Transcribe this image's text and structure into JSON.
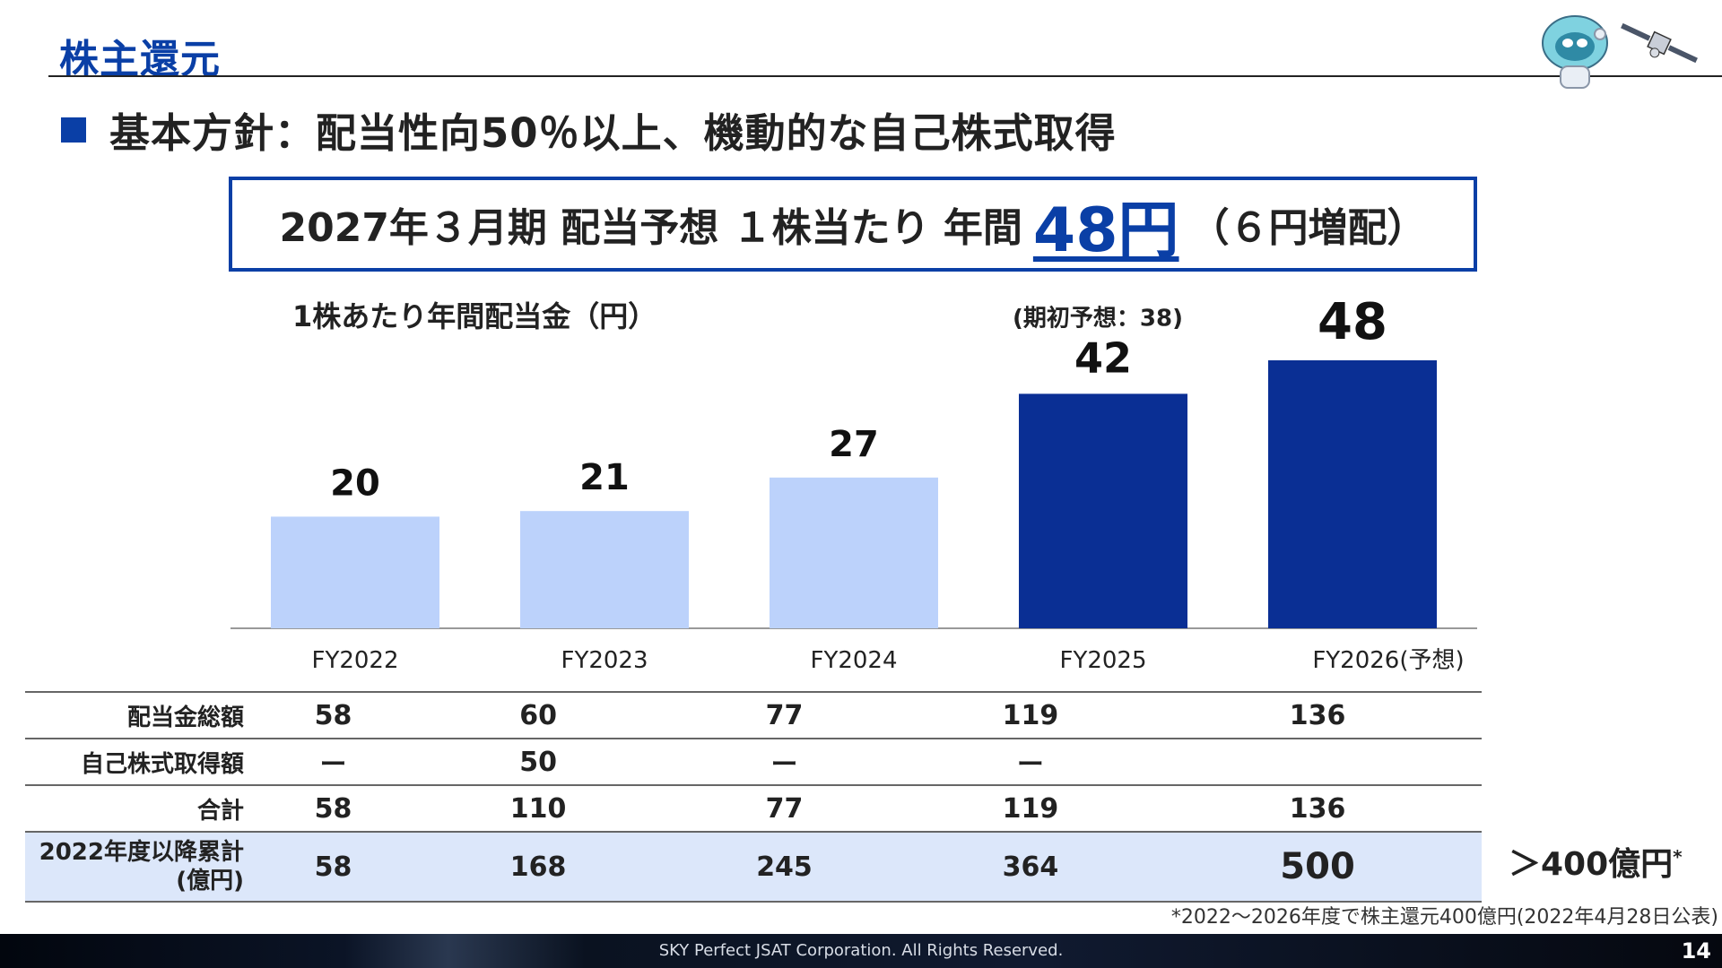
{
  "header": {
    "title": "株主還元"
  },
  "policy": {
    "text": "基本方針：配当性向50％以上、機動的な自己株式取得"
  },
  "highlight": {
    "prefix": "2027年３月期 配当予想 １株当たり 年間",
    "amount": "48円",
    "suffix": "（６円増配）"
  },
  "chart_data": {
    "type": "bar",
    "title": "1株あたり年間配当金（円）",
    "categories": [
      "FY2022",
      "FY2023",
      "FY2024",
      "FY2025",
      "FY2026(予想)"
    ],
    "values": [
      20,
      21,
      27,
      42,
      48
    ],
    "bar_colors": [
      "#bcd2fb",
      "#bcd2fb",
      "#bcd2fb",
      "#0a2f94",
      "#0a2f94"
    ],
    "annotation": "(期初予想：38)",
    "ylim": [
      0,
      50
    ],
    "grid": false
  },
  "table": {
    "rows": [
      {
        "label": "配当金総額",
        "values": [
          "58",
          "60",
          "77",
          "119",
          "136"
        ]
      },
      {
        "label": "自己株式取得額",
        "values": [
          "ー",
          "50",
          "ー",
          "ー",
          ""
        ]
      },
      {
        "label": "合計",
        "values": [
          "58",
          "110",
          "77",
          "119",
          "136"
        ]
      }
    ],
    "cumulative": {
      "label_line1": "2022年度以降累計",
      "label_line2": "(億円)",
      "values": [
        "58",
        "168",
        "245",
        "364",
        "500"
      ]
    }
  },
  "side_note": {
    "text": "＞400億円",
    "mark": "*"
  },
  "footnote": "*2022～2026年度で株主還元400億円(2022年4月28日公表)",
  "footer": {
    "copyright": "SKY Perfect JSAT Corporation. All Rights Reserved.",
    "page": "14"
  },
  "colors": {
    "accent": "#0a3fa6",
    "light_bar": "#bcd2fb",
    "dark_bar": "#0a2f94",
    "highlight_row": "#dce7fa"
  },
  "icons": [
    "mascot-icon",
    "satellite-icon"
  ]
}
